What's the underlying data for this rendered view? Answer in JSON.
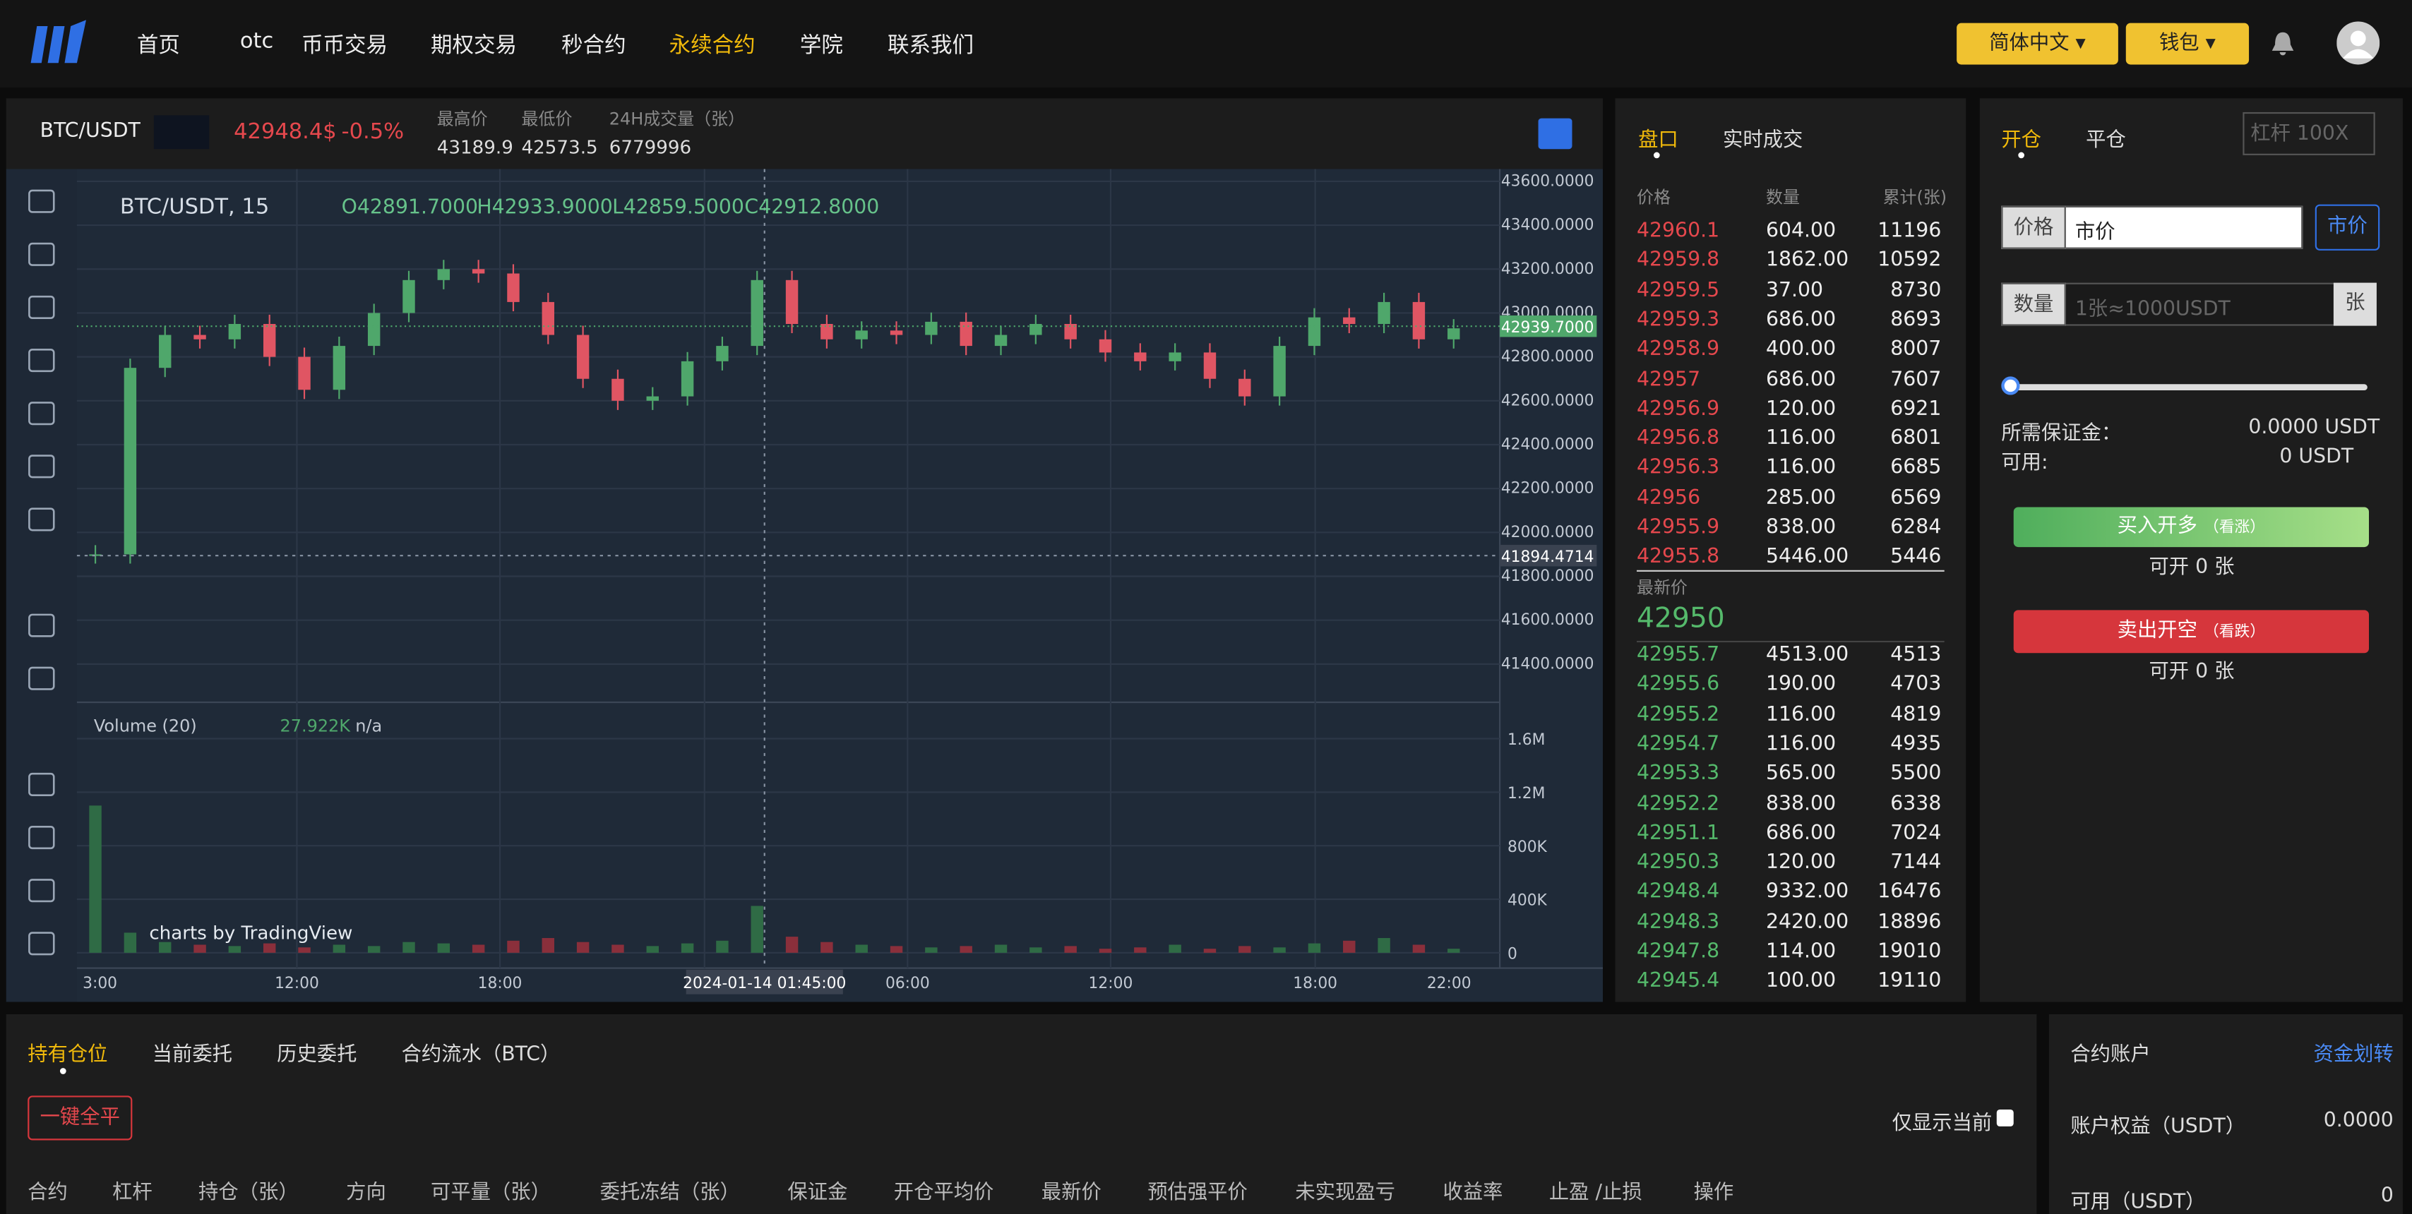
{
  "nav": {
    "items": [
      "首页",
      "otc",
      "币币交易",
      "期权交易",
      "秒合约",
      "永续合约",
      "学院",
      "联系我们"
    ],
    "active": 5,
    "language": "简体中文",
    "wallet": "钱包"
  },
  "ticker": {
    "pair": "BTC/USDT",
    "price": "42948.4$",
    "change": "-0.5%",
    "high_label": "最高价",
    "high": "43189.9",
    "low_label": "最低价",
    "low": "42573.5",
    "vol_label": "24H成交量（张）",
    "vol": "6779996"
  },
  "chart": {
    "type": "candlestick",
    "symbol": "BTC/USDT, 15",
    "o": "O42891.7000",
    "h": "H42933.9000",
    "l": "L42859.5000",
    "c": "C42912.8000",
    "price_ylim": [
      41240,
      43635
    ],
    "price_ticks": [
      {
        "value": 43600,
        "label": "43600.0000"
      },
      {
        "value": 43400,
        "label": "43400.0000"
      },
      {
        "value": 43200,
        "label": "43200.0000"
      },
      {
        "value": 43000,
        "label": "43000.0000"
      },
      {
        "value": 42800,
        "label": "42800.0000"
      },
      {
        "value": 42600,
        "label": "42600.0000"
      },
      {
        "value": 42400,
        "label": "42400.0000"
      },
      {
        "value": 42200,
        "label": "42200.0000"
      },
      {
        "value": 42000,
        "label": "42000.0000"
      },
      {
        "value": 41800,
        "label": "41800.0000"
      },
      {
        "value": 41600,
        "label": "41600.0000"
      },
      {
        "value": 41400,
        "label": "41400.0000"
      }
    ],
    "last_price": {
      "value": 42939.7,
      "label": "42939.7000"
    },
    "crosshair_price": 41894.4714,
    "crosshair_time": "2024-01-14 01:45:00",
    "closes": [
      41900,
      42750,
      42900,
      42880,
      42950,
      42800,
      42650,
      42850,
      43000,
      43150,
      43200,
      43180,
      43050,
      42900,
      42700,
      42600,
      42620,
      42780,
      42850,
      43150,
      42950,
      42880,
      42920,
      42900,
      42960,
      42850,
      42900,
      42950,
      42880,
      42820,
      42780,
      42820,
      42700,
      42620,
      42850,
      42980,
      42950,
      43050,
      42880,
      42930
    ],
    "volume_label": "Volume (20)",
    "volume_value": "27.922K",
    "volume_na": "n/a",
    "volume_ylim": [
      0,
      1780000
    ],
    "volume_ticks": [
      {
        "value": 1600000,
        "label": "1.6M"
      },
      {
        "value": 1200000,
        "label": "1.2M"
      },
      {
        "value": 800000,
        "label": "800K"
      },
      {
        "value": 400000,
        "label": "400K"
      },
      0
    ],
    "volumes": [
      1100000,
      150000,
      80000,
      60000,
      50000,
      70000,
      40000,
      60000,
      50000,
      80000,
      70000,
      60000,
      90000,
      110000,
      80000,
      60000,
      50000,
      70000,
      90000,
      350000,
      120000,
      80000,
      60000,
      50000,
      40000,
      50000,
      60000,
      40000,
      50000,
      30000,
      40000,
      60000,
      30000,
      50000,
      40000,
      70000,
      90000,
      110000,
      60000,
      30000
    ],
    "xlabels": [
      "3:00",
      "12:00",
      "18:00",
      "06:00",
      "12:00",
      "18:00",
      "22:00"
    ],
    "credit": "charts by TradingView"
  },
  "orderbook": {
    "tabs": [
      "盘口",
      "实时成交"
    ],
    "headers": [
      "价格",
      "数量",
      "累计(张)"
    ],
    "asks": [
      [
        "42960.1",
        "604.00",
        "11196"
      ],
      [
        "42959.8",
        "1862.00",
        "10592"
      ],
      [
        "42959.5",
        "37.00",
        "8730"
      ],
      [
        "42959.3",
        "686.00",
        "8693"
      ],
      [
        "42958.9",
        "400.00",
        "8007"
      ],
      [
        "42957",
        "686.00",
        "7607"
      ],
      [
        "42956.9",
        "120.00",
        "6921"
      ],
      [
        "42956.8",
        "116.00",
        "6801"
      ],
      [
        "42956.3",
        "116.00",
        "6685"
      ],
      [
        "42956",
        "285.00",
        "6569"
      ],
      [
        "42955.9",
        "838.00",
        "6284"
      ],
      [
        "42955.8",
        "5446.00",
        "5446"
      ]
    ],
    "latest_label": "最新价",
    "latest": "42950",
    "bids": [
      [
        "42955.7",
        "4513.00",
        "4513"
      ],
      [
        "42955.6",
        "190.00",
        "4703"
      ],
      [
        "42955.2",
        "116.00",
        "4819"
      ],
      [
        "42954.7",
        "116.00",
        "4935"
      ],
      [
        "42953.3",
        "565.00",
        "5500"
      ],
      [
        "42952.2",
        "838.00",
        "6338"
      ],
      [
        "42951.1",
        "686.00",
        "7024"
      ],
      [
        "42950.3",
        "120.00",
        "7144"
      ],
      [
        "42948.4",
        "9332.00",
        "16476"
      ],
      [
        "42948.3",
        "2420.00",
        "18896"
      ],
      [
        "42947.8",
        "114.00",
        "19010"
      ],
      [
        "42945.4",
        "100.00",
        "19110"
      ]
    ]
  },
  "order": {
    "tabs": [
      "开仓",
      "平仓"
    ],
    "leverage": "杠杆 100X",
    "price_label": "价格",
    "price_value": "市价",
    "market_btn": "市价",
    "qty_label": "数量",
    "qty_placeholder": "1张≈1000USDT",
    "qty_unit": "张",
    "margin_label": "所需保证金：",
    "margin": "0.0000 USDT",
    "avail_label": "可用:",
    "avail": "0 USDT",
    "buy": "买入开多",
    "buy_hint": "（看涨）",
    "buy_open": "可开 0 张",
    "sell": "卖出开空",
    "sell_hint": "（看跌）",
    "sell_open": "可开 0 张"
  },
  "positions": {
    "tabs": [
      "持有仓位",
      "当前委托",
      "历史委托",
      "合约流水（BTC）"
    ],
    "close_all": "一键全平",
    "only_current": "仅显示当前",
    "columns": [
      "合约",
      "杠杆",
      "持仓（张）",
      "方向",
      "可平量（张）",
      "委托冻结（张）",
      "保证金",
      "开仓平均价",
      "最新价",
      "预估强平价",
      "未实现盈亏",
      "收益率",
      "止盈 /止损",
      "操作"
    ]
  },
  "account": {
    "title": "合约账户",
    "transfer": "资金划转",
    "equity_label": "账户权益（USDT）",
    "equity": "0.0000",
    "avail_label": "可用（USDT）",
    "avail": "0"
  }
}
